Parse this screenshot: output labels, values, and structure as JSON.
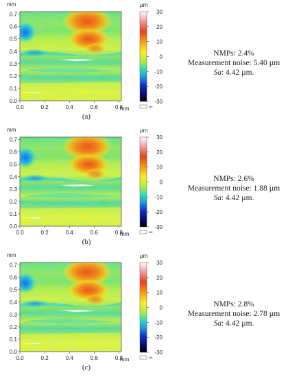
{
  "axes": {
    "y_unit": "mm",
    "x_unit": "mm",
    "y_ticks": [
      "0.0",
      "0.1",
      "0.2",
      "0.3",
      "0.4",
      "0.5",
      "0.6",
      "0.7"
    ],
    "x_ticks": [
      "0.0",
      "0.2",
      "0.4",
      "0.6",
      "0.8"
    ]
  },
  "colorbar": {
    "unit": "µm",
    "ticks": [
      "30",
      "20",
      "10",
      "0",
      "-10",
      "-20",
      "-30"
    ],
    "nm_label": "NM",
    "colors": [
      "#ffffff",
      "#f4a0a0",
      "#e8401c",
      "#f59a14",
      "#f8ef2a",
      "#b8ea3c",
      "#3de0a8",
      "#1ca2e6",
      "#1230c8",
      "#0a0a70",
      "#000000"
    ],
    "range": [
      -30,
      30
    ]
  },
  "panels": [
    {
      "caption": "(a)",
      "nmps": "NMPs: 2.4%",
      "noise": "Measurement noise: 5.40 µm",
      "sa_label": "Sa",
      "sa_value": ": 4.42 µm."
    },
    {
      "caption": "(b)",
      "nmps": "NMPs: 2.6%",
      "noise": "Measurement noise: 1.88 µm",
      "sa_label": "Sa",
      "sa_value": ": 4.42 µm."
    },
    {
      "caption": "(c)",
      "nmps": "NMPs: 2.8%",
      "noise": "Measurement noise: 2.78 µm",
      "sa_label": "Sa",
      "sa_value": ": 4.42 µm."
    }
  ]
}
